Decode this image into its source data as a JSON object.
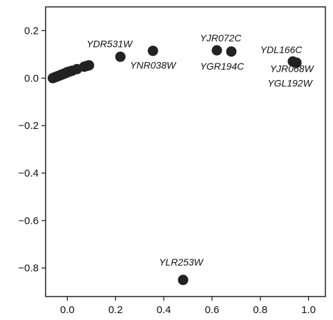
{
  "chart_data": {
    "type": "scatter",
    "title": "",
    "xlabel": "",
    "ylabel": "",
    "xlim": [
      -0.09,
      1.07
    ],
    "ylim": [
      -0.92,
      0.3
    ],
    "x_ticks": [
      {
        "value": 0.0,
        "label": "0.0"
      },
      {
        "value": 0.2,
        "label": "0.2"
      },
      {
        "value": 0.4,
        "label": "0.4"
      },
      {
        "value": 0.6,
        "label": "0.6"
      },
      {
        "value": 0.8,
        "label": "0.8"
      },
      {
        "value": 1.0,
        "label": "1.0"
      }
    ],
    "y_ticks": [
      {
        "value": 0.2,
        "label": "0.2"
      },
      {
        "value": 0.0,
        "label": "0.0"
      },
      {
        "value": -0.2,
        "label": "−0.2"
      },
      {
        "value": -0.4,
        "label": "−0.4"
      },
      {
        "value": -0.6,
        "label": "−0.6"
      },
      {
        "value": -0.8,
        "label": "−0.8"
      }
    ],
    "grid": false,
    "legend": "none",
    "marker_color": "#222222",
    "points": [
      {
        "x": -0.06,
        "y": 0.0
      },
      {
        "x": -0.055,
        "y": 0.002
      },
      {
        "x": -0.05,
        "y": 0.004
      },
      {
        "x": -0.045,
        "y": 0.006
      },
      {
        "x": -0.04,
        "y": 0.008
      },
      {
        "x": -0.035,
        "y": 0.01
      },
      {
        "x": -0.03,
        "y": 0.012
      },
      {
        "x": -0.025,
        "y": 0.014
      },
      {
        "x": -0.02,
        "y": 0.016
      },
      {
        "x": -0.015,
        "y": 0.018
      },
      {
        "x": -0.01,
        "y": 0.02
      },
      {
        "x": -0.005,
        "y": 0.022
      },
      {
        "x": 0.0,
        "y": 0.025
      },
      {
        "x": 0.01,
        "y": 0.028
      },
      {
        "x": 0.02,
        "y": 0.031
      },
      {
        "x": 0.04,
        "y": 0.038
      },
      {
        "x": 0.07,
        "y": 0.048
      },
      {
        "x": 0.08,
        "y": 0.051
      },
      {
        "x": 0.09,
        "y": 0.054
      },
      {
        "x": 0.22,
        "y": 0.09,
        "label": "YDR531W"
      },
      {
        "x": 0.355,
        "y": 0.115,
        "label": "YNR038W"
      },
      {
        "x": 0.62,
        "y": 0.117,
        "label": "YJR072C"
      },
      {
        "x": 0.68,
        "y": 0.112,
        "label": "YGR194C"
      },
      {
        "x": 0.935,
        "y": 0.07,
        "label": "YDL166C"
      },
      {
        "x": 0.95,
        "y": 0.065
      },
      {
        "x": 0.48,
        "y": -0.85,
        "label": "YLR253W"
      }
    ],
    "annotations": [
      {
        "text": "YDR531W",
        "x": 0.08,
        "y": 0.13
      },
      {
        "text": "YNR038W",
        "x": 0.26,
        "y": 0.04
      },
      {
        "text": "YJR072C",
        "x": 0.55,
        "y": 0.155
      },
      {
        "text": "YGR194C",
        "x": 0.55,
        "y": 0.035
      },
      {
        "text": "YDL166C",
        "x": 0.8,
        "y": 0.105
      },
      {
        "text": "YJR068W",
        "x": 0.84,
        "y": 0.025
      },
      {
        "text": "YGL192W",
        "x": 0.83,
        "y": -0.035
      },
      {
        "text": "YLR253W",
        "x": 0.38,
        "y": -0.79
      }
    ]
  }
}
